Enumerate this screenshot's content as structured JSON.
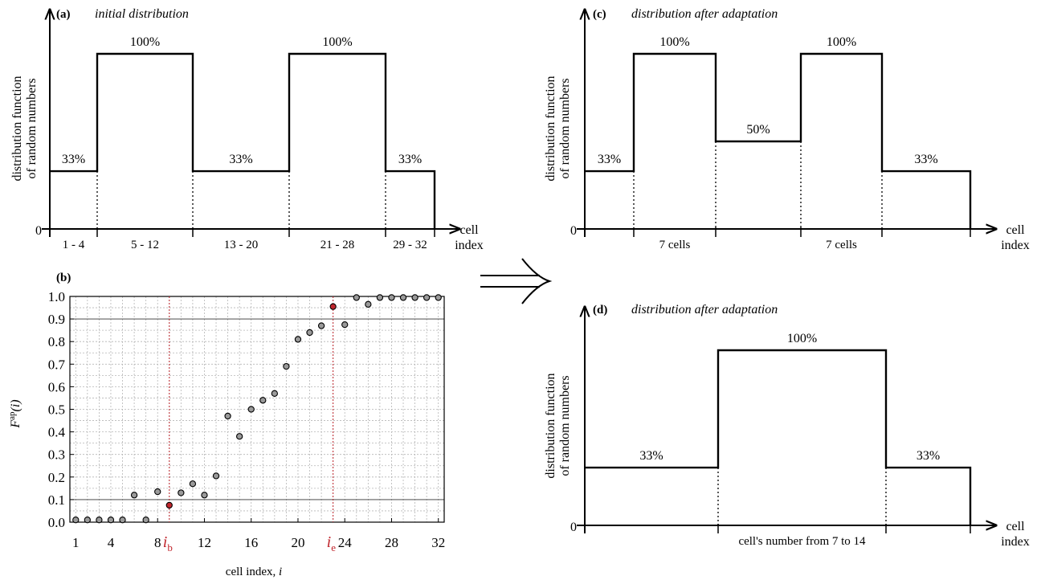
{
  "arrow_symbol": "⇒",
  "panels": {
    "a": {
      "tag": "(a)",
      "title": "initial distribution",
      "ylabel": [
        "distribution function",
        "of random numbers"
      ],
      "xlabel": [
        "cell",
        "index"
      ],
      "zero": "0",
      "segments": [
        {
          "label": "1 - 4",
          "pct": "33%",
          "level": 0.33
        },
        {
          "label": "5 - 12",
          "pct": "100%",
          "level": 1.0
        },
        {
          "label": "13 - 20",
          "pct": "33%",
          "level": 0.33
        },
        {
          "label": "21 - 28",
          "pct": "100%",
          "level": 1.0
        },
        {
          "label": "29 - 32",
          "pct": "33%",
          "level": 0.33
        }
      ]
    },
    "c": {
      "tag": "(c)",
      "title": "distribution after adaptation",
      "ylabel": [
        "distribution function",
        "of random numbers"
      ],
      "xlabel": [
        "cell",
        "index"
      ],
      "zero": "0",
      "segments": [
        {
          "label": "",
          "pct": "33%",
          "level": 0.33
        },
        {
          "label": "7 cells",
          "pct": "100%",
          "level": 1.0
        },
        {
          "label": "",
          "pct": "50%",
          "level": 0.5
        },
        {
          "label": "7 cells",
          "pct": "100%",
          "level": 1.0
        },
        {
          "label": "",
          "pct": "33%",
          "level": 0.33
        }
      ]
    },
    "d": {
      "tag": "(d)",
      "title": "distribution after adaptation",
      "ylabel": [
        "distribution function",
        "of random numbers"
      ],
      "xlabel": [
        "cell",
        "index"
      ],
      "zero": "0",
      "segments": [
        {
          "label": "",
          "pct": "33%",
          "level": 0.33
        },
        {
          "label": "cell's number from 7 to 14",
          "pct": "100%",
          "level": 1.0
        },
        {
          "label": "",
          "pct": "33%",
          "level": 0.33
        }
      ]
    },
    "b": {
      "tag": "(b)",
      "ylabel": "F",
      "ylabel_sup": "ap",
      "ylabel_arg": "(i)",
      "xlabel": "cell index, ",
      "xlabel_var": "i",
      "ib": "i",
      "ib_sub": "b",
      "ie": "i",
      "ie_sub": "e"
    }
  },
  "chart_data": {
    "type": "scatter",
    "xlabel": "cell index, i",
    "ylabel": "F^ap(i)",
    "xlim": [
      0.5,
      32.5
    ],
    "ylim": [
      0,
      1.0
    ],
    "x_ticks": [
      "1",
      "4",
      "8",
      "12",
      "16",
      "20",
      "24",
      "28",
      "32"
    ],
    "y_ticks": [
      "0.0",
      "0.1",
      "0.2",
      "0.3",
      "0.4",
      "0.5",
      "0.6",
      "0.7",
      "0.8",
      "0.9",
      "1.0"
    ],
    "grid": true,
    "major_y_lines": [
      0.1,
      0.9
    ],
    "x": [
      1,
      2,
      3,
      4,
      5,
      6,
      7,
      8,
      9,
      10,
      11,
      12,
      13,
      14,
      15,
      16,
      17,
      18,
      19,
      20,
      21,
      22,
      23,
      24,
      25,
      26,
      27,
      28,
      29,
      30,
      31,
      32
    ],
    "y": [
      0.01,
      0.01,
      0.01,
      0.01,
      0.01,
      0.12,
      0.01,
      0.135,
      0.075,
      0.13,
      0.17,
      0.12,
      0.205,
      0.47,
      0.38,
      0.5,
      0.54,
      0.57,
      0.69,
      0.81,
      0.84,
      0.87,
      0.955,
      0.875,
      0.995,
      0.965,
      0.995,
      0.995,
      0.995,
      0.995,
      0.995,
      0.995
    ],
    "highlighted": [
      {
        "label": "i_b",
        "x": 9,
        "color": "#c0262d"
      },
      {
        "label": "i_e",
        "x": 23,
        "color": "#c0262d"
      }
    ],
    "point_color": "#9a9a9a",
    "highlight_color": "#c0262d"
  }
}
